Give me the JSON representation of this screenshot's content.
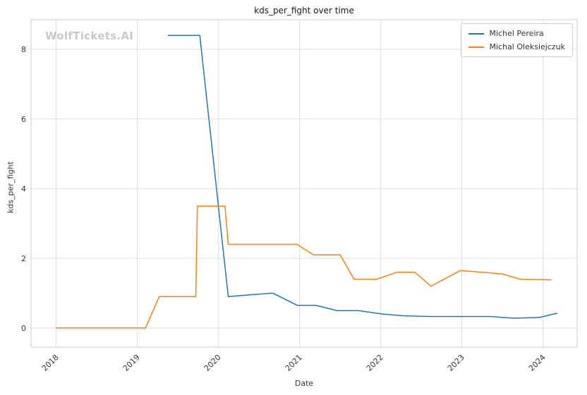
{
  "watermark": "WolfTickets.AI",
  "chart_data": {
    "type": "line",
    "title": "kds_per_fight over time",
    "xlabel": "Date",
    "ylabel": "kds_per_fight",
    "grid": true,
    "legend_position": "upper right",
    "x_ticks": [
      2018,
      2019,
      2020,
      2021,
      2022,
      2023,
      2024
    ],
    "y_ticks": [
      0,
      2,
      4,
      6,
      8
    ],
    "xlim": [
      2017.69,
      2024.42
    ],
    "ylim": [
      -0.55,
      8.85
    ],
    "colors": {
      "grid": "#dcdcdc",
      "spine": "#cccccc",
      "tick_label": "#333333"
    },
    "series": [
      {
        "name": "Michel Pereira",
        "color": "#1f77b4",
        "x": [
          2019.38,
          2019.77,
          2020.12,
          2020.38,
          2020.67,
          2020.97,
          2021.2,
          2021.46,
          2021.72,
          2022.02,
          2022.28,
          2022.6,
          2022.95,
          2023.35,
          2023.63,
          2023.95,
          2024.17
        ],
        "y": [
          8.4,
          8.4,
          0.9,
          0.95,
          1.0,
          0.65,
          0.65,
          0.5,
          0.5,
          0.4,
          0.35,
          0.33,
          0.33,
          0.33,
          0.28,
          0.3,
          0.42
        ]
      },
      {
        "name": "Michal Oleksiejczuk",
        "color": "#ff7f0e",
        "x": [
          2018.0,
          2018.55,
          2019.1,
          2019.27,
          2019.55,
          2019.72,
          2019.74,
          2020.08,
          2020.12,
          2020.45,
          2020.72,
          2020.97,
          2021.17,
          2021.5,
          2021.67,
          2021.95,
          2022.2,
          2022.42,
          2022.62,
          2022.98,
          2023.25,
          2023.5,
          2023.72,
          2024.1
        ],
        "y": [
          0.0,
          0.0,
          0.0,
          0.9,
          0.9,
          0.9,
          3.5,
          3.5,
          2.4,
          2.4,
          2.4,
          2.4,
          2.1,
          2.1,
          1.4,
          1.4,
          1.6,
          1.6,
          1.2,
          1.65,
          1.6,
          1.55,
          1.4,
          1.38
        ]
      }
    ]
  }
}
